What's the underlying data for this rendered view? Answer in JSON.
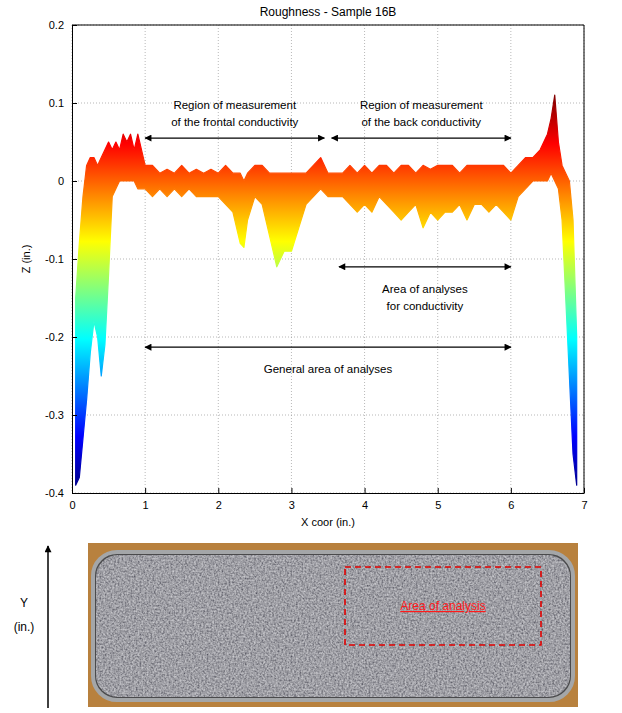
{
  "chart_data": {
    "type": "area",
    "title": "Roughness - Sample 16B",
    "x_label": "X coor (in.)",
    "y_label": "Z (in.)",
    "xlim": [
      0,
      7
    ],
    "ylim": [
      -0.4,
      0.2
    ],
    "xticks": [
      0,
      1,
      2,
      3,
      4,
      5,
      6,
      7
    ],
    "yticks": [
      -0.4,
      -0.3,
      -0.2,
      -0.1,
      0,
      0.1,
      0.2
    ],
    "grid": true,
    "color": "jet",
    "x": [
      0.05,
      0.1,
      0.15,
      0.2,
      0.25,
      0.3,
      0.35,
      0.4,
      0.45,
      0.5,
      0.55,
      0.6,
      0.65,
      0.7,
      0.75,
      0.8,
      0.85,
      0.9,
      1.0,
      1.1,
      1.2,
      1.3,
      1.4,
      1.5,
      1.6,
      1.7,
      1.8,
      1.9,
      2.0,
      2.1,
      2.2,
      2.3,
      2.35,
      2.4,
      2.5,
      2.6,
      2.7,
      2.8,
      2.9,
      3.0,
      3.1,
      3.2,
      3.3,
      3.4,
      3.5,
      3.6,
      3.7,
      3.8,
      3.9,
      4.0,
      4.1,
      4.2,
      4.3,
      4.4,
      4.5,
      4.6,
      4.7,
      4.8,
      4.9,
      5.0,
      5.1,
      5.2,
      5.3,
      5.4,
      5.5,
      5.6,
      5.7,
      5.8,
      5.9,
      6.0,
      6.1,
      6.2,
      6.3,
      6.4,
      6.5,
      6.55,
      6.6,
      6.65,
      6.7,
      6.75,
      6.8,
      6.85,
      6.9
    ],
    "values": [
      -0.15,
      -0.08,
      -0.02,
      0.02,
      0.03,
      0.03,
      0.02,
      0.03,
      0.04,
      0.05,
      0.04,
      0.05,
      0.04,
      0.06,
      0.05,
      0.06,
      0.04,
      0.06,
      0.02,
      0.02,
      0.01,
      0.015,
      0.01,
      0.02,
      0.01,
      0.015,
      0.01,
      0.015,
      0.01,
      0.02,
      0.01,
      0.01,
      0.0,
      0.01,
      0.02,
      0.02,
      0.01,
      0.01,
      0.01,
      0.01,
      0.01,
      0.01,
      0.02,
      0.03,
      0.01,
      0.01,
      0.01,
      0.02,
      0.01,
      0.02,
      0.01,
      0.02,
      0.02,
      0.01,
      0.02,
      0.02,
      0.01,
      0.02,
      0.015,
      0.02,
      0.02,
      0.02,
      0.01,
      0.02,
      0.02,
      0.02,
      0.02,
      0.02,
      0.02,
      0.01,
      0.02,
      0.03,
      0.03,
      0.04,
      0.06,
      0.08,
      0.11,
      0.05,
      0.02,
      0.01,
      0.0,
      -0.05,
      -0.2
    ],
    "lower": [
      -0.39,
      -0.38,
      -0.33,
      -0.28,
      -0.22,
      -0.18,
      -0.2,
      -0.25,
      -0.21,
      -0.12,
      -0.02,
      -0.01,
      0.0,
      0.0,
      0.0,
      0.0,
      0.0,
      -0.01,
      -0.01,
      -0.02,
      -0.01,
      -0.02,
      -0.01,
      -0.02,
      -0.01,
      -0.02,
      -0.02,
      -0.02,
      -0.02,
      -0.03,
      -0.04,
      -0.08,
      -0.085,
      -0.05,
      -0.02,
      -0.03,
      -0.07,
      -0.11,
      -0.09,
      -0.09,
      -0.06,
      -0.03,
      -0.02,
      -0.01,
      -0.02,
      -0.02,
      -0.02,
      -0.03,
      -0.04,
      -0.03,
      -0.04,
      -0.02,
      -0.03,
      -0.04,
      -0.05,
      -0.04,
      -0.03,
      -0.06,
      -0.04,
      -0.05,
      -0.04,
      -0.04,
      -0.03,
      -0.05,
      -0.03,
      -0.03,
      -0.04,
      -0.03,
      -0.04,
      -0.05,
      -0.02,
      -0.01,
      0.0,
      0.0,
      0.0,
      0.01,
      0.0,
      -0.01,
      -0.05,
      -0.15,
      -0.25,
      -0.35,
      -0.39
    ],
    "annotations": [
      {
        "text": [
          "Region of measurement",
          "of the frontal conductivity"
        ],
        "x": [
          1,
          3.45
        ],
        "z": 0.055
      },
      {
        "text": [
          "Region of measurement",
          "of the back conductivity"
        ],
        "x": [
          3.55,
          6
        ],
        "z": 0.055
      },
      {
        "text": [
          "Area of analyses",
          "for conductivity"
        ],
        "x": [
          3.65,
          6
        ],
        "z": -0.11
      },
      {
        "text": [
          "General area of analyses"
        ],
        "x": [
          1,
          6
        ],
        "z": -0.213
      }
    ]
  },
  "photo": {
    "y_label": [
      "Y",
      "(in.)"
    ],
    "area_label": "Area of analysis"
  }
}
